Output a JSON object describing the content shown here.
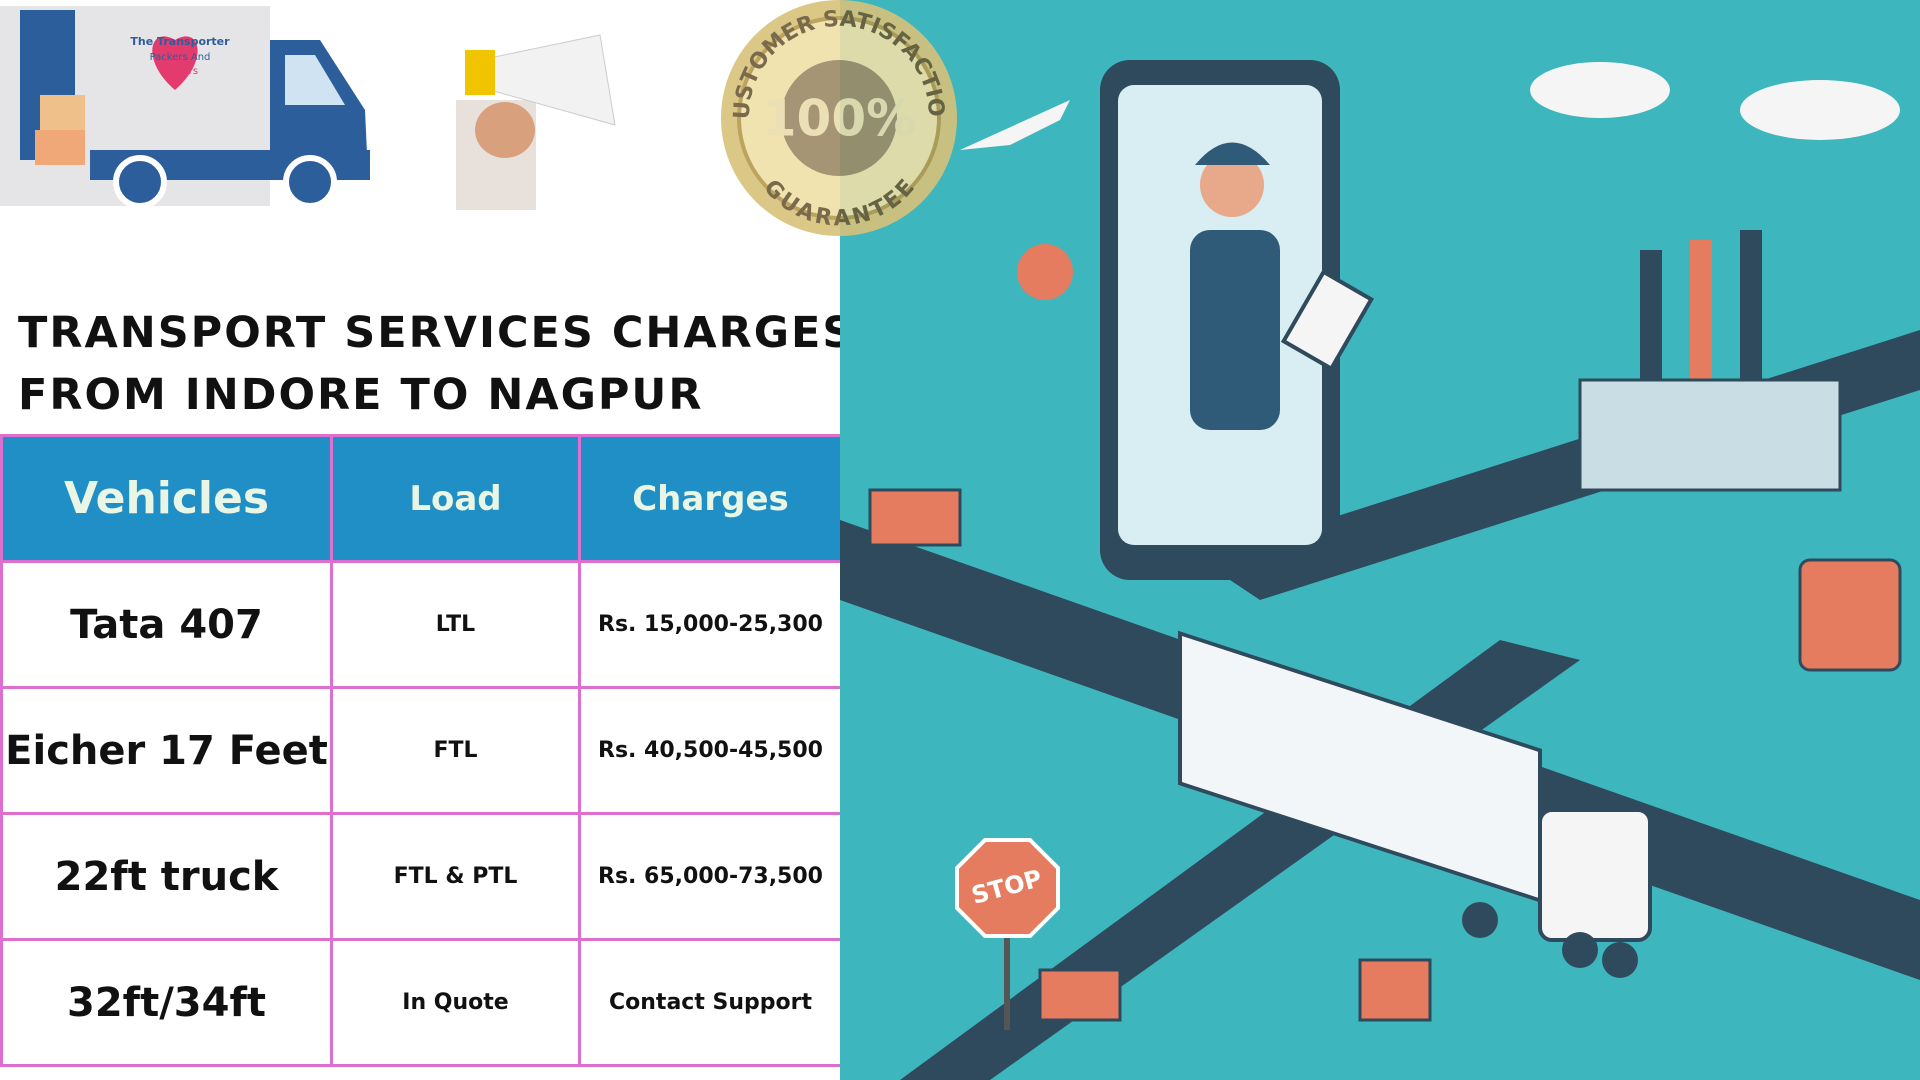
{
  "logo": {
    "lines": [
      "The Transporter",
      "Packers And",
      "Movers"
    ]
  },
  "badge": {
    "top": "CUSTOMER SATISFACTION",
    "center": "100%",
    "bottom": "GUARANTEE"
  },
  "title": [
    "TRANSPORT SERVICES CHARGES",
    "FROM INDORE TO NAGPUR"
  ],
  "table": {
    "header": [
      "Vehicles",
      "Load",
      "Charges"
    ],
    "rows": [
      [
        "Tata 407",
        "LTL",
        "Rs. 15,000-25,300"
      ],
      [
        "Eicher 17 Feet",
        "FTL",
        "Rs. 40,500-45,500"
      ],
      [
        "22ft truck",
        "FTL & PTL",
        "Rs. 65,000-73,500"
      ],
      [
        "32ft/34ft",
        "In Quote",
        "Contact Support"
      ]
    ]
  },
  "illustration": {
    "sign": "STOP"
  }
}
